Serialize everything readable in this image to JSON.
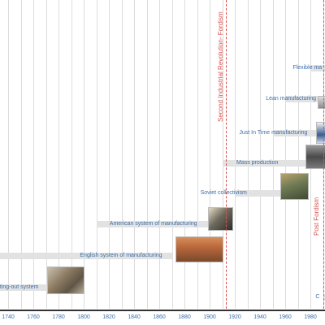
{
  "axis": {
    "ticks": [
      "1740",
      "1760",
      "1780",
      "1800",
      "1820",
      "1840",
      "1860",
      "1880",
      "1900",
      "1920",
      "1940",
      "1960",
      "1980"
    ]
  },
  "eras": [
    {
      "name": "Second Industrial Revolution- Fordism",
      "year": 1915
    },
    {
      "name": "Post Fordism",
      "year": 1995
    }
  ],
  "systems": [
    {
      "label": "utting-out system",
      "start": 1700,
      "end": 1780
    },
    {
      "label": "English system of manufacturing",
      "start": 1700,
      "end": 1870
    },
    {
      "label": "American system of manufacturing",
      "start": 1810,
      "end": 1900
    },
    {
      "label": "Soviet collectivism",
      "start": 1920,
      "end": 1960
    },
    {
      "label": "Mass production",
      "start": 1910,
      "end": 1990
    },
    {
      "label": "Just In Time manufacturing",
      "start": 1950,
      "end": 1990
    },
    {
      "label": "Lean manufacturing",
      "start": 1960,
      "end": 1990
    },
    {
      "label": "Flexible ma",
      "start": 1980,
      "end": 2000
    },
    {
      "label": "C",
      "start": 1990,
      "end": 2000
    }
  ],
  "colors": {
    "label": "#3d6fa8",
    "era": "#d9534f",
    "band": "#e2e2e2",
    "grid": "#dcdcdc"
  },
  "images": [
    {
      "name": "putting-out-photo",
      "year": 1783
    },
    {
      "name": "english-system-painting",
      "year": 1886
    },
    {
      "name": "american-system-machine",
      "year": 1910
    },
    {
      "name": "soviet-collectivism-painting",
      "year": 1970
    },
    {
      "name": "mass-production-photo",
      "year": 1993
    },
    {
      "name": "jit-photo",
      "year": 1995
    },
    {
      "name": "lean-badge",
      "year": 1997
    }
  ]
}
